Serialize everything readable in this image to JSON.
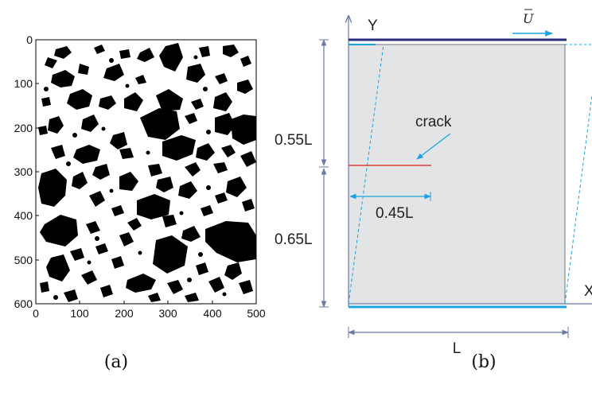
{
  "panel_a": {
    "y_ticks": [
      "0",
      "100",
      "200",
      "300",
      "400",
      "500",
      "600"
    ],
    "x_ticks": [
      "0",
      "100",
      "200",
      "300",
      "400",
      "500"
    ],
    "caption": "(a)"
  },
  "panel_b": {
    "axis_y": "Y",
    "axis_x": "X",
    "load_label": "U",
    "crack_label": "crack",
    "dim_upper": "0.55L",
    "dim_lower": "0.65L",
    "crack_length": "0.45L",
    "width_label": "L",
    "caption": "(b)",
    "colors": {
      "top_plate": "#2a2d7c",
      "blue": "#1aa3e0",
      "crack": "#e0201d",
      "specimen_fill": "#e3e4e6",
      "dimension": "#6a7aa8"
    }
  }
}
